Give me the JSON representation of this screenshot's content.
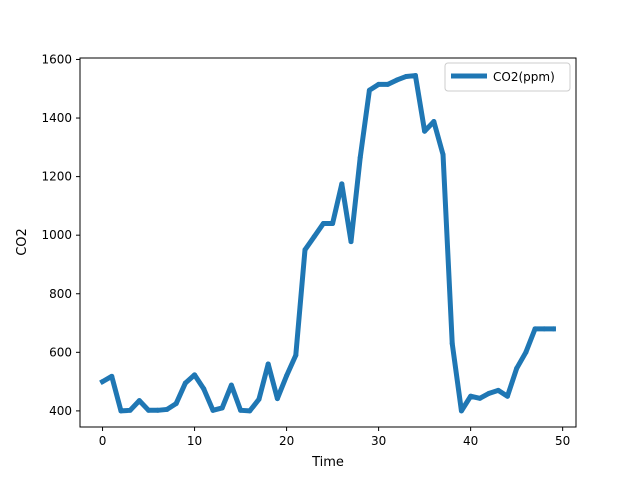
{
  "chart_data": {
    "type": "line",
    "title": "",
    "xlabel": "Time",
    "ylabel": "CO2",
    "xlim": [
      -2.45,
      51.45
    ],
    "ylim": [
      345,
      1605
    ],
    "xticks": [
      0,
      10,
      20,
      30,
      40,
      50
    ],
    "yticks": [
      400,
      600,
      800,
      1000,
      1200,
      1400,
      1600
    ],
    "grid": false,
    "legend_position": "upper right",
    "series": [
      {
        "name": "CO2(ppm)",
        "color": "#1f77b4",
        "x": [
          0,
          1,
          2,
          3,
          4,
          5,
          6,
          7,
          8,
          9,
          10,
          11,
          12,
          13,
          14,
          15,
          16,
          17,
          18,
          19,
          20,
          21,
          22,
          23,
          24,
          25,
          26,
          27,
          28,
          29,
          30,
          31,
          32,
          33,
          34,
          35,
          36,
          37,
          38,
          39,
          40,
          41,
          42,
          43,
          44,
          45,
          46,
          47,
          48,
          49
        ],
        "y": [
          500,
          518,
          400,
          402,
          435,
          402,
          402,
          405,
          425,
          495,
          523,
          475,
          402,
          410,
          488,
          402,
          400,
          440,
          560,
          442,
          520,
          590,
          950,
          995,
          1040,
          1040,
          1175,
          978,
          1265,
          1495,
          1515,
          1515,
          1530,
          1542,
          1545,
          1355,
          1388,
          1275,
          630,
          400,
          450,
          443,
          460,
          470,
          450,
          545,
          600,
          680,
          680,
          680
        ]
      }
    ]
  }
}
